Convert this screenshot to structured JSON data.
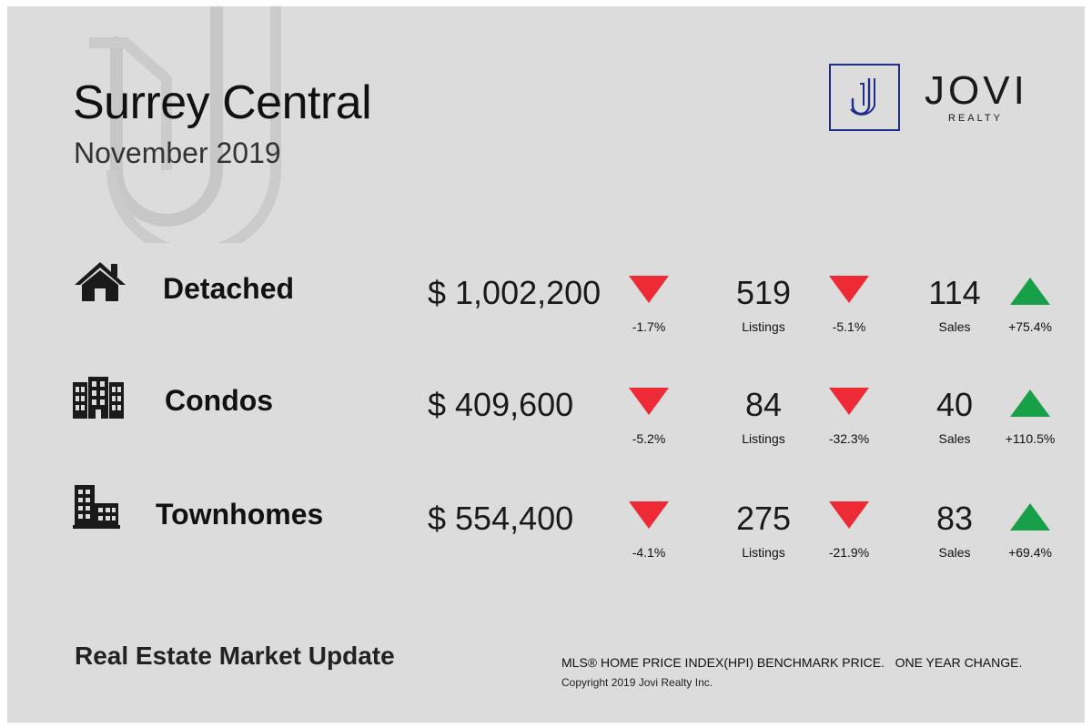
{
  "header": {
    "title": "Surrey Central",
    "subtitle": "November 2019"
  },
  "logo": {
    "mark": "J",
    "name": "JOVI",
    "tagline": "REALTY",
    "color": "#1e2e8a"
  },
  "rows": [
    {
      "icon": "house-icon",
      "type": "Detached",
      "price": "$ 1,002,200",
      "price_change": "-1.7%",
      "price_direction": "down",
      "listings": "519",
      "listings_label": "Listings",
      "listings_change": "-5.1%",
      "listings_direction": "down",
      "sales": "114",
      "sales_label": "Sales",
      "sales_change": "+75.4%",
      "sales_direction": "up"
    },
    {
      "icon": "condo-building-icon",
      "type": "Condos",
      "price": "$ 409,600",
      "price_change": "-5.2%",
      "price_direction": "down",
      "listings": "84",
      "listings_label": "Listings",
      "listings_change": "-32.3%",
      "listings_direction": "down",
      "sales": "40",
      "sales_label": "Sales",
      "sales_change": "+110.5%",
      "sales_direction": "up"
    },
    {
      "icon": "townhome-building-icon",
      "type": "Townhomes",
      "price": "$ 554,400",
      "price_change": "-4.1%",
      "price_direction": "down",
      "listings": "275",
      "listings_label": "Listings",
      "listings_change": "-21.9%",
      "listings_direction": "down",
      "sales": "83",
      "sales_label": "Sales",
      "sales_change": "+69.4%",
      "sales_direction": "up"
    }
  ],
  "colors": {
    "down": "#ee2a36",
    "up": "#18a048"
  },
  "footer": {
    "label": "Real Estate Market Update",
    "note": "MLS® HOME PRICE INDEX(HPI) BENCHMARK PRICE.   ONE YEAR CHANGE.",
    "copyright": "Copyright 2019 Jovi Realty Inc."
  }
}
